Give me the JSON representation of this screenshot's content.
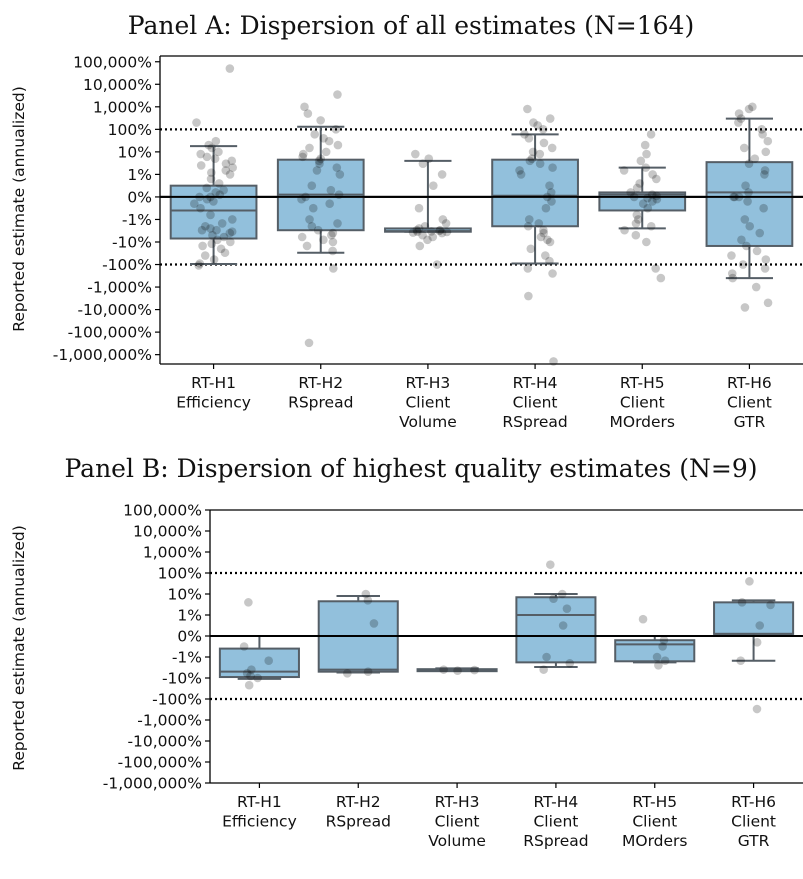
{
  "chart_data": [
    {
      "type": "box",
      "title": "Panel A: Dispersion of all estimates (N=164)",
      "ylabel": "Reported estimate (annualized)",
      "yscale": "symlog",
      "ylim": [
        -2600000,
        180000
      ],
      "yticks": [
        {
          "value": 100000,
          "label": "100,000%"
        },
        {
          "value": 10000,
          "label": "10,000%"
        },
        {
          "value": 1000,
          "label": "1,000%"
        },
        {
          "value": 100,
          "label": "100%"
        },
        {
          "value": 10,
          "label": "10%"
        },
        {
          "value": 1,
          "label": "1%"
        },
        {
          "value": 0,
          "label": "0%"
        },
        {
          "value": -1,
          "label": "-1%"
        },
        {
          "value": -10,
          "label": "-10%"
        },
        {
          "value": -100,
          "label": "-100%"
        },
        {
          "value": -1000,
          "label": "-1,000%"
        },
        {
          "value": -10000,
          "label": "-10,000%"
        },
        {
          "value": -100000,
          "label": "-100,000%"
        },
        {
          "value": -1000000,
          "label": "-1,000,000%"
        }
      ],
      "reference_lines": [
        {
          "value": 0,
          "style": "solid"
        },
        {
          "value": 100,
          "style": "dotted"
        },
        {
          "value": -100,
          "style": "dotted"
        }
      ],
      "categories": [
        [
          "RT-H1",
          "Efficiency"
        ],
        [
          "RT-H2",
          "RSpread"
        ],
        [
          "RT-H3",
          "Client",
          "Volume"
        ],
        [
          "RT-H4",
          "Client",
          "RSpread"
        ],
        [
          "RT-H5",
          "Client",
          "MOrders"
        ],
        [
          "RT-H6",
          "Client",
          "GTR"
        ]
      ],
      "boxes": [
        {
          "whisker_low": -95,
          "q1": -7,
          "median": -0.6,
          "q3": 0.5,
          "whisker_high": 18
        },
        {
          "whisker_low": -30,
          "q1": -3,
          "median": 0.1,
          "q3": 4.5,
          "whisker_high": 130
        },
        {
          "whisker_low": -3.5,
          "q1": -3.5,
          "median": -3.3,
          "q3": -2.5,
          "whisker_high": 4
        },
        {
          "whisker_low": -90,
          "q1": -2,
          "median": 0.05,
          "q3": 4.5,
          "whisker_high": 60
        },
        {
          "whisker_low": -2.5,
          "q1": -0.6,
          "median": 0.1,
          "q3": 0.2,
          "whisker_high": 2
        },
        {
          "whisker_low": -400,
          "q1": -15,
          "median": 0.2,
          "q3": 3.5,
          "whisker_high": 300
        }
      ],
      "points": [
        [
          50000,
          200,
          30,
          20,
          15,
          10,
          8,
          6,
          5,
          4,
          3,
          2.5,
          2,
          1.5,
          1.2,
          1,
          0.8,
          0.6,
          0.4,
          0.3,
          0.2,
          0.1,
          0,
          0,
          -0.1,
          -0.2,
          -0.3,
          -0.5,
          -0.8,
          -1,
          -1.5,
          -2,
          -2.5,
          -3,
          -3,
          -3.5,
          -4,
          -5,
          -6,
          -8,
          -10,
          -12,
          -15,
          -20,
          -30,
          -40,
          -60,
          -90,
          -110
        ],
        [
          3500,
          1000,
          500,
          250,
          100,
          60,
          40,
          30,
          20,
          15,
          10,
          8,
          6,
          5,
          4,
          3,
          2,
          1.5,
          1,
          0.5,
          0.3,
          0.1,
          0,
          -0.1,
          -0.3,
          -0.5,
          -1,
          -1.5,
          -2,
          -3,
          -4,
          -5,
          -6,
          -8,
          -10,
          -15,
          -25,
          -150,
          -300000
        ],
        [
          8,
          5,
          3,
          1,
          0.5,
          -0.5,
          -1,
          -1.5,
          -2,
          -2.5,
          -3,
          -3,
          -3.2,
          -3.4,
          -3.5,
          -3.6,
          -3.8,
          -4,
          -5,
          -6,
          -8,
          -15,
          -100
        ],
        [
          800,
          300,
          200,
          150,
          100,
          60,
          40,
          25,
          15,
          10,
          8,
          5,
          4,
          3,
          2,
          1.5,
          1,
          0.5,
          0.2,
          0,
          -0.2,
          -0.5,
          -1,
          -1.5,
          -2,
          -3,
          -4,
          -6,
          -8,
          -10,
          -20,
          -40,
          -70,
          -150,
          -250,
          -2500,
          -2000000
        ],
        [
          60,
          20,
          8,
          4,
          2,
          1.5,
          1,
          0.8,
          0.6,
          0.4,
          0.2,
          0.1,
          0.05,
          0,
          -0.05,
          -0.1,
          -0.2,
          -0.3,
          -0.5,
          -0.8,
          -1,
          -1.5,
          -2,
          -3,
          -5,
          -10,
          -150,
          -400
        ],
        [
          1000,
          800,
          500,
          300,
          200,
          100,
          60,
          30,
          15,
          10,
          5,
          3,
          1.5,
          1,
          0.5,
          0.2,
          0,
          0,
          0,
          -0.2,
          -0.5,
          -1,
          -2,
          -4,
          -8,
          -15,
          -25,
          -40,
          -60,
          -100,
          -150,
          -250,
          -400,
          -1000,
          -5000,
          -8000
        ]
      ]
    },
    {
      "type": "box",
      "title": "Panel B: Dispersion of highest quality estimates (N=9)",
      "ylabel": "Reported estimate (annualized)",
      "yscale": "symlog",
      "ylim": [
        -1000000,
        100000
      ],
      "yticks": [
        {
          "value": 100000,
          "label": "100,000%"
        },
        {
          "value": 10000,
          "label": "10,000%"
        },
        {
          "value": 1000,
          "label": "1,000%"
        },
        {
          "value": 100,
          "label": "100%"
        },
        {
          "value": 10,
          "label": "10%"
        },
        {
          "value": 1,
          "label": "1%"
        },
        {
          "value": 0,
          "label": "0%"
        },
        {
          "value": -1,
          "label": "-1%"
        },
        {
          "value": -10,
          "label": "-10%"
        },
        {
          "value": -100,
          "label": "-100%"
        },
        {
          "value": -1000,
          "label": "-1,000%"
        },
        {
          "value": -10000,
          "label": "-10,000%"
        },
        {
          "value": -100000,
          "label": "-100,000%"
        },
        {
          "value": -1000000,
          "label": "-1,000,000%"
        }
      ],
      "reference_lines": [
        {
          "value": 0,
          "style": "solid"
        },
        {
          "value": 100,
          "style": "dotted"
        },
        {
          "value": -100,
          "style": "dotted"
        }
      ],
      "categories": [
        [
          "RT-H1",
          "Efficiency"
        ],
        [
          "RT-H2",
          "RSpread"
        ],
        [
          "RT-H3",
          "Client",
          "Volume"
        ],
        [
          "RT-H4",
          "Client",
          "RSpread"
        ],
        [
          "RT-H5",
          "Client",
          "MOrders"
        ],
        [
          "RT-H6",
          "Client",
          "GTR"
        ]
      ],
      "boxes": [
        {
          "whisker_low": -11,
          "q1": -9,
          "median": -5,
          "q3": -0.6,
          "whisker_high": 0
        },
        {
          "whisker_low": -5.5,
          "q1": -5,
          "median": -4,
          "q3": 4.5,
          "whisker_high": 8
        },
        {
          "whisker_low": -4.5,
          "q1": -4.5,
          "median": -4.2,
          "q3": -3.8,
          "whisker_high": -3.5
        },
        {
          "whisker_low": -3,
          "q1": -1.8,
          "median": 1,
          "q3": 7,
          "whisker_high": 10
        },
        {
          "whisker_low": -1.8,
          "q1": -1.6,
          "median": -0.4,
          "q3": -0.2,
          "whisker_high": 0
        },
        {
          "whisker_low": -1.5,
          "q1": 0.1,
          "median": 0.1,
          "q3": 4,
          "whisker_high": 5
        }
      ],
      "points": [
        [
          4,
          -0.5,
          -1.5,
          -4,
          -6,
          -8,
          -10,
          -22
        ],
        [
          10,
          5,
          0.6,
          -5,
          -6
        ],
        [
          -4,
          -4.2,
          -4.5
        ],
        [
          250,
          10,
          6,
          2,
          0.5,
          -1,
          -2,
          -4
        ],
        [
          0.8,
          -0.2,
          -0.5,
          -1,
          -1.5,
          -2.5
        ],
        [
          40,
          4,
          3,
          0.5,
          -0.3,
          -1.5,
          -300
        ]
      ]
    }
  ]
}
